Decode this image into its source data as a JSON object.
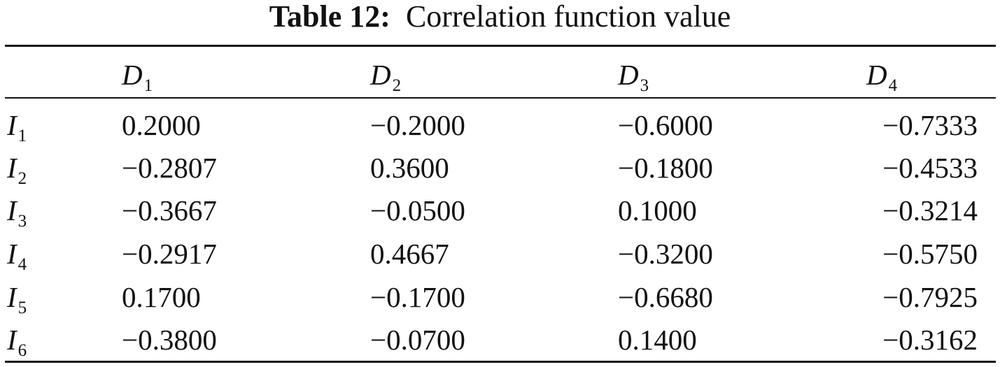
{
  "caption": {
    "label": "Table 12:",
    "text": "Correlation function value"
  },
  "table": {
    "columns": [
      {
        "symbol": "D",
        "sub": "1"
      },
      {
        "symbol": "D",
        "sub": "2"
      },
      {
        "symbol": "D",
        "sub": "3"
      },
      {
        "symbol": "D",
        "sub": "4"
      }
    ],
    "rows": [
      {
        "symbol": "I",
        "sub": "1",
        "values": [
          "0.2000",
          "−0.2000",
          "−0.6000",
          "−0.7333"
        ]
      },
      {
        "symbol": "I",
        "sub": "2",
        "values": [
          "−0.2807",
          "0.3600",
          "−0.1800",
          "−0.4533"
        ]
      },
      {
        "symbol": "I",
        "sub": "3",
        "values": [
          "−0.3667",
          "−0.0500",
          "0.1000",
          "−0.3214"
        ]
      },
      {
        "symbol": "I",
        "sub": "4",
        "values": [
          "−0.2917",
          "0.4667",
          "−0.3200",
          "−0.5750"
        ]
      },
      {
        "symbol": "I",
        "sub": "5",
        "values": [
          "0.1700",
          "−0.1700",
          "−0.6680",
          "−0.7925"
        ]
      },
      {
        "symbol": "I",
        "sub": "6",
        "values": [
          "−0.3800",
          "−0.0700",
          "0.1400",
          "−0.3162"
        ]
      }
    ]
  }
}
